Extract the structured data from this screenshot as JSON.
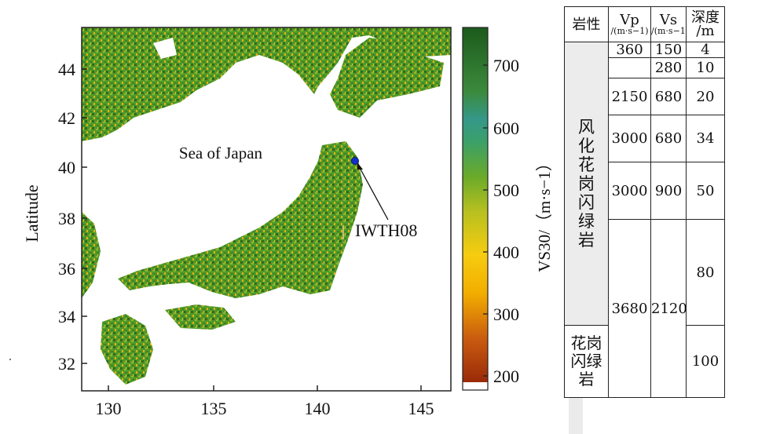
{
  "map": {
    "sea_label": "Sea of Japan",
    "station_label": "IWTH08",
    "y_axis_label": "Latitude",
    "x_ticks": [
      "130",
      "135",
      "140",
      "145"
    ],
    "y_ticks": [
      "32",
      "34",
      "36",
      "38",
      "40",
      "42",
      "44"
    ],
    "colorbar_ticks": [
      "200",
      "300",
      "400",
      "500",
      "600",
      "700"
    ],
    "colorbar_label": "VS30/（m·s−1）",
    "colors": {
      "low": "#a0300a",
      "mid": "#f5b800",
      "high": "#1f6b1c",
      "teal": "#3aa08a",
      "station": "#1230c8"
    }
  },
  "table": {
    "headers": {
      "lithology": "岩性",
      "vp": "Vp",
      "vp_unit": "/(m·s−1)",
      "vs": "Vs",
      "vs_unit": "/(m·s−1)",
      "depth": "深度",
      "depth_unit": "/m"
    },
    "rock1": "风化花岗闪绿岩",
    "rock2": "花岗闪绿岩",
    "rows": [
      {
        "vp": "360",
        "vs": "150",
        "depth": "4"
      },
      {
        "vp": "",
        "vs": "280",
        "depth": "10"
      },
      {
        "vp": "2150",
        "vs": "680",
        "depth": "20"
      },
      {
        "vp": "3000",
        "vs": "680",
        "depth": "34"
      },
      {
        "vp": "3000",
        "vs": "900",
        "depth": "50"
      },
      {
        "vp": "3680",
        "vs": "2120",
        "depth": "80"
      },
      {
        "depth": "100"
      }
    ]
  }
}
